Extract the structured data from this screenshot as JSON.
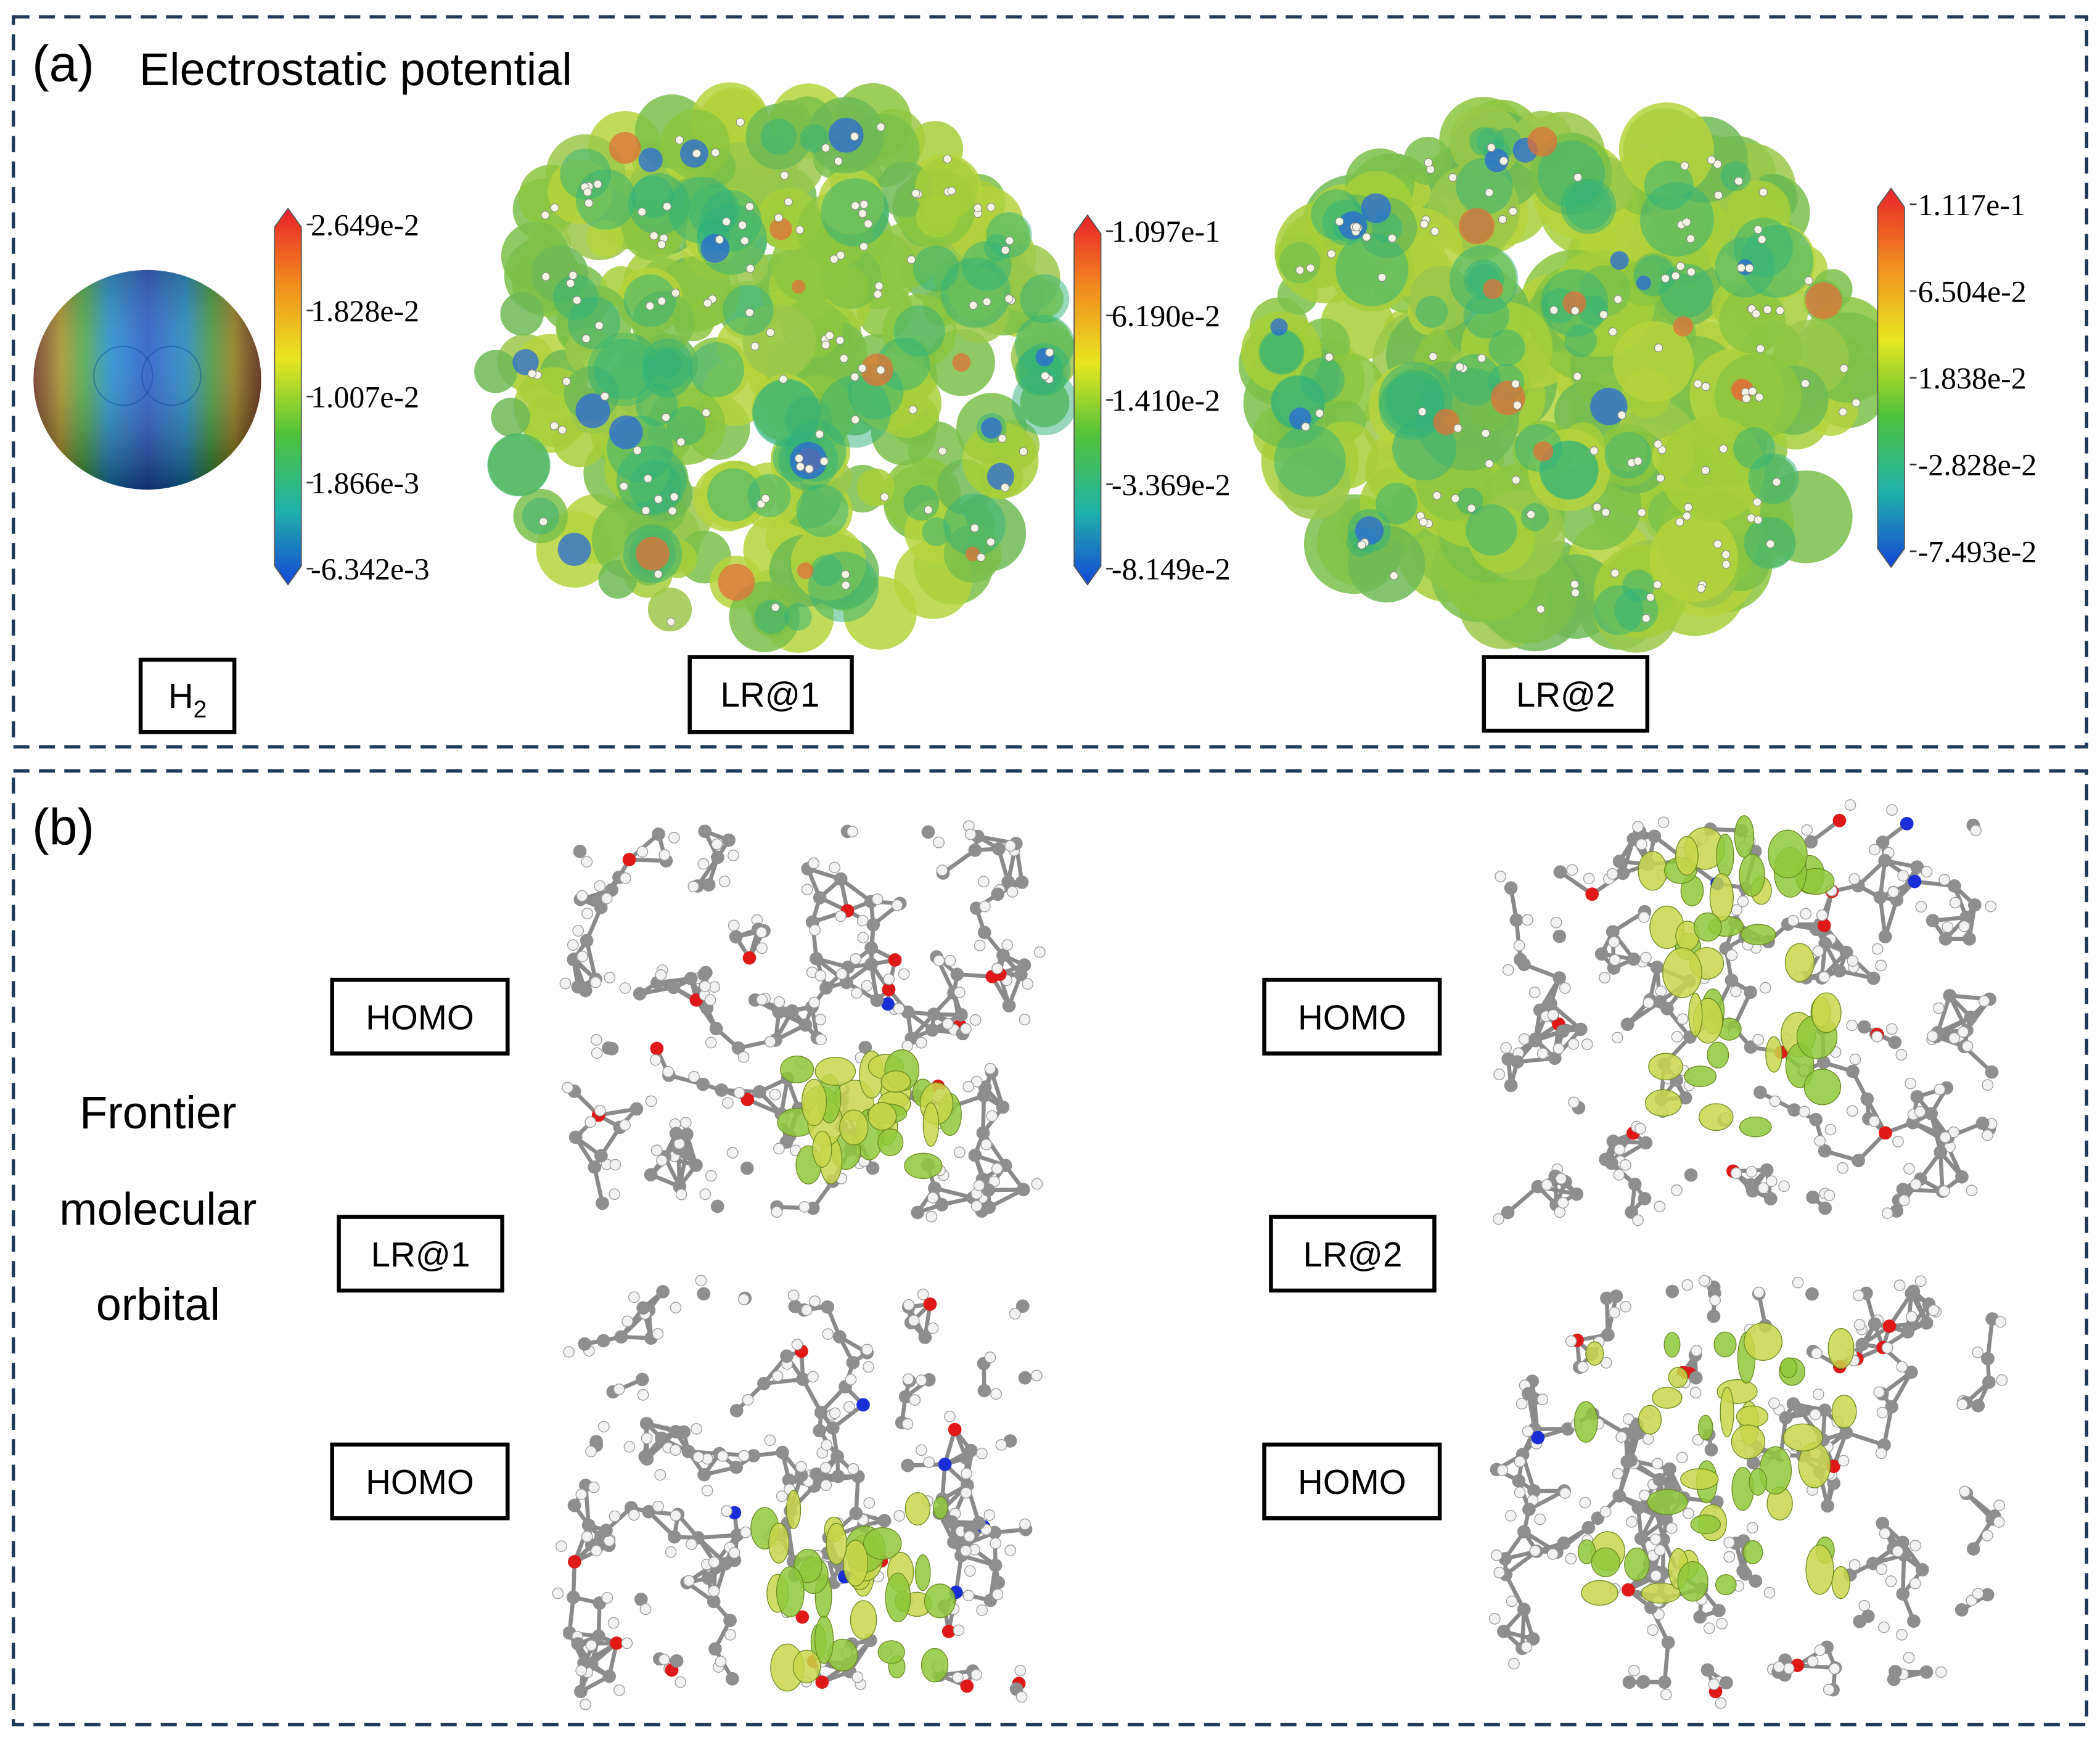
{
  "panel_a": {
    "label": "(a)",
    "title": "Electrostatic potential",
    "colorbars": [
      [
        "2.649e-2",
        "1.828e-2",
        "1.007e-2",
        "1.866e-3",
        "-6.342e-3"
      ],
      [
        "1.097e-1",
        "6.190e-2",
        "1.410e-2",
        "-3.369e-2",
        "-8.149e-2"
      ],
      [
        "1.117e-1",
        "6.504e-2",
        "1.838e-2",
        "-2.828e-2",
        "-7.493e-2"
      ]
    ],
    "molecules": [
      {
        "name": "H",
        "subscript": "2"
      },
      {
        "name": "LR@1"
      },
      {
        "name": "LR@2"
      }
    ]
  },
  "panel_b": {
    "label": "(b)",
    "title_lines": [
      "Frontier",
      "molecular",
      "orbital"
    ],
    "columns": [
      {
        "labels": [
          "HOMO",
          "LR@1",
          "HOMO"
        ]
      },
      {
        "labels": [
          "HOMO",
          "LR@2",
          "HOMO"
        ]
      }
    ]
  }
}
